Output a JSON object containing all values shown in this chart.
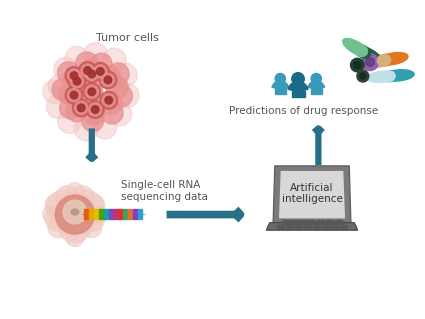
{
  "bg_color": "#ffffff",
  "arrow_color": "#2a6f8a",
  "tumor_outer_color": "#f2c0c0",
  "tumor_mid_color": "#e89090",
  "tumor_inner_color": "#c95a5a",
  "tumor_nucleus_color": "#a03030",
  "single_outer_color": "#f0c8c0",
  "single_mid_color": "#d9897a",
  "single_inner_color": "#c8b0a8",
  "label_tumor_cells": "Tumor cells",
  "label_scrna": "Single-cell RNA\nsequencing data",
  "label_ai": "Artificial\nintelligence",
  "label_predictions": "Predictions of drug response",
  "laptop_frame_color": "#7a7a7a",
  "laptop_screen_color": "#c8c8c8",
  "laptop_screen_inner": "#d8d8d8",
  "person_dark": "#1a6a8a",
  "person_light": "#3a9aba",
  "rna_colors": [
    "#e06010",
    "#f0a000",
    "#e0c000",
    "#50a000",
    "#10a0b0",
    "#7050c0",
    "#c03080",
    "#e03030",
    "#40a060",
    "#e07030",
    "#8040c0",
    "#30a0d0"
  ],
  "pill1_color": [
    "#70c090",
    "#206040"
  ],
  "pill2_color": [
    "#9060b0",
    "#503070"
  ],
  "pill3_color": [
    "#e07820",
    "#904010"
  ],
  "pill4_color": [
    "#30a0b0",
    "#106070"
  ],
  "pill5_color": [
    "#c0c0c0",
    "#707070"
  ],
  "figsize": [
    4.25,
    3.19
  ],
  "dpi": 100
}
